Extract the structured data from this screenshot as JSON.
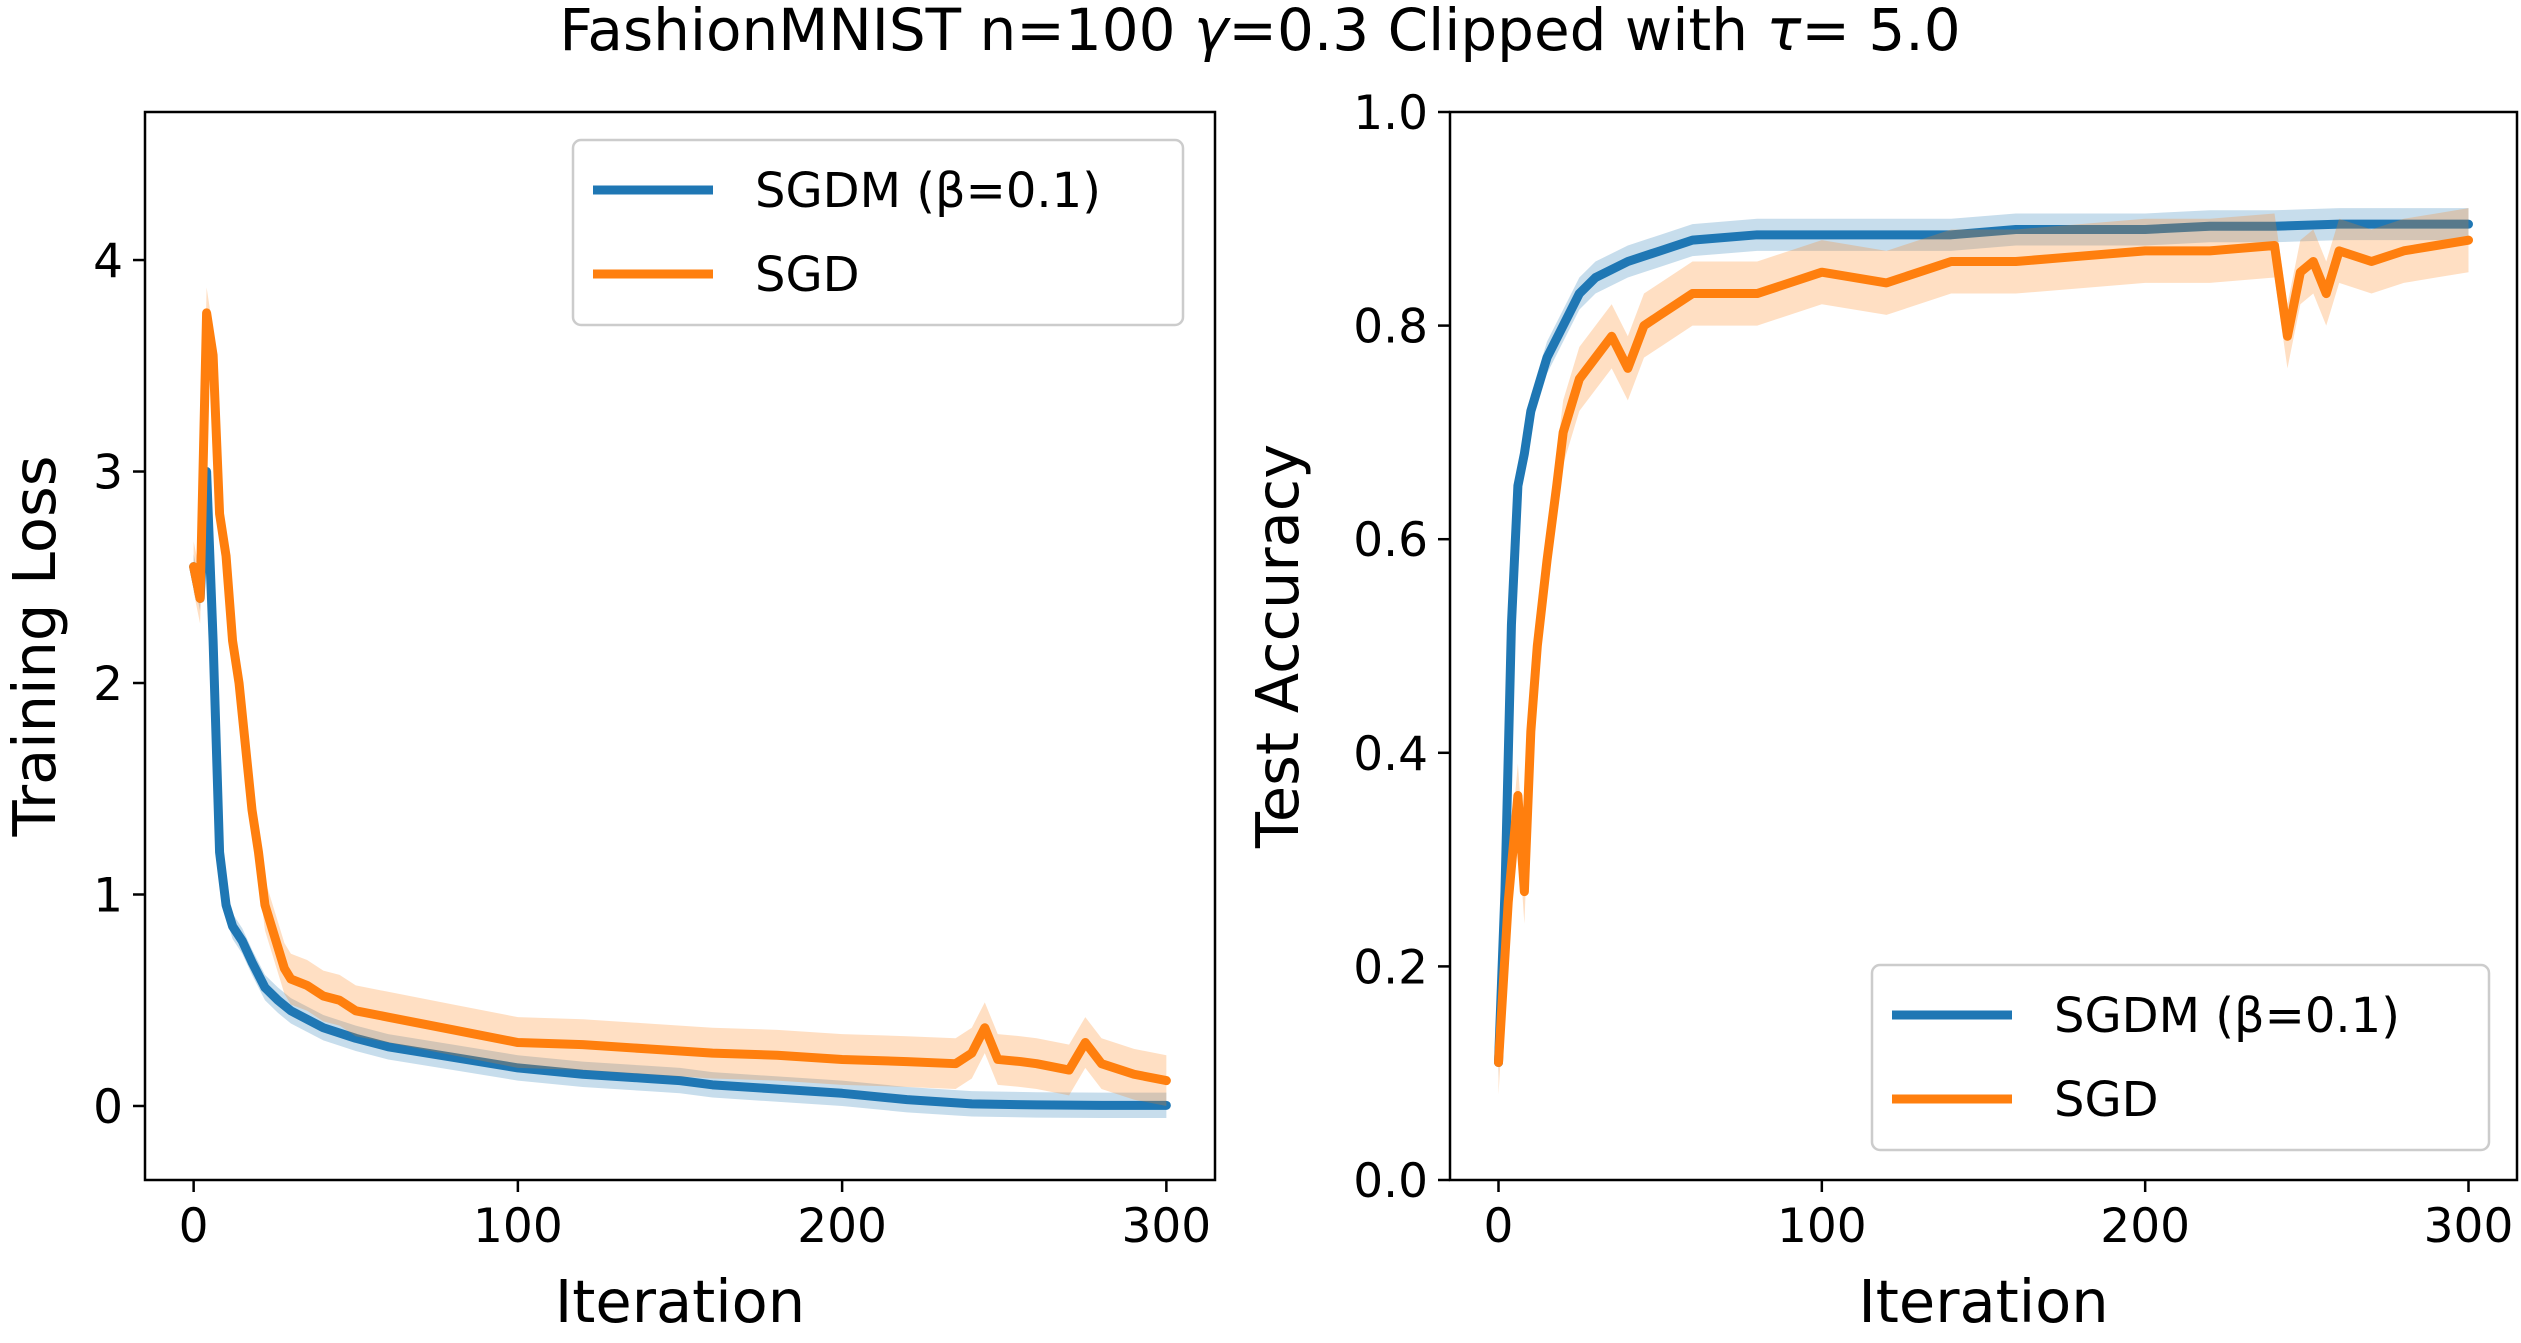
{
  "figure": {
    "title_prefix": "FashionMNIST n=100 ",
    "title_gamma_symbol": "γ",
    "title_middle": "=0.3 Clipped with ",
    "title_tau_symbol": "τ",
    "title_suffix": "= 5.0"
  },
  "colors": {
    "sgdm": "#1f77b4",
    "sgd": "#ff7f0e"
  },
  "chart_data": [
    {
      "type": "line",
      "xlabel": "Iteration",
      "ylabel": "Training Loss",
      "xlim": [
        -15,
        315
      ],
      "ylim": [
        -0.35,
        4.7
      ],
      "xticks": [
        "0",
        "100",
        "200",
        "300"
      ],
      "yticks": [
        "0",
        "1",
        "2",
        "3",
        "4"
      ],
      "legend_position": "upper right",
      "legend": [
        "SGDM (β=0.1)",
        "SGD"
      ],
      "grid": false,
      "series": [
        {
          "name": "SGDM (β=0.1)",
          "key": "sgdm",
          "x": [
            0,
            2,
            4,
            6,
            8,
            10,
            12,
            15,
            18,
            22,
            26,
            30,
            40,
            50,
            60,
            80,
            100,
            120,
            140,
            150,
            160,
            180,
            200,
            220,
            240,
            260,
            280,
            300
          ],
          "y": [
            2.55,
            2.4,
            3.0,
            2.2,
            1.2,
            0.95,
            0.85,
            0.78,
            0.68,
            0.56,
            0.5,
            0.45,
            0.37,
            0.32,
            0.28,
            0.23,
            0.18,
            0.15,
            0.13,
            0.12,
            0.1,
            0.08,
            0.06,
            0.03,
            0.01,
            0.005,
            0.003,
            0.003
          ],
          "band": 0.06
        },
        {
          "name": "SGD",
          "key": "sgd",
          "x": [
            0,
            2,
            4,
            6,
            8,
            10,
            12,
            14,
            16,
            18,
            20,
            22,
            25,
            28,
            30,
            35,
            40,
            45,
            50,
            60,
            80,
            100,
            120,
            140,
            160,
            180,
            200,
            220,
            235,
            240,
            244,
            248,
            255,
            260,
            270,
            275,
            280,
            290,
            300
          ],
          "y": [
            2.55,
            2.4,
            3.75,
            3.55,
            2.8,
            2.6,
            2.2,
            2.0,
            1.7,
            1.4,
            1.2,
            0.95,
            0.8,
            0.65,
            0.6,
            0.57,
            0.52,
            0.5,
            0.45,
            0.42,
            0.36,
            0.3,
            0.29,
            0.27,
            0.25,
            0.24,
            0.22,
            0.21,
            0.2,
            0.25,
            0.37,
            0.22,
            0.21,
            0.2,
            0.17,
            0.3,
            0.2,
            0.15,
            0.12
          ],
          "band": 0.12
        }
      ]
    },
    {
      "type": "line",
      "xlabel": "Iteration",
      "ylabel": "Test Accuracy",
      "xlim": [
        -15,
        315
      ],
      "ylim": [
        0.0,
        1.0
      ],
      "xticks": [
        "0",
        "100",
        "200",
        "300"
      ],
      "yticks": [
        "0.0",
        "0.2",
        "0.4",
        "0.6",
        "0.8",
        "1.0"
      ],
      "legend_position": "lower right",
      "legend": [
        "SGDM (β=0.1)",
        "SGD"
      ],
      "grid": false,
      "series": [
        {
          "name": "SGDM (β=0.1)",
          "key": "sgdm",
          "x": [
            0,
            2,
            4,
            6,
            8,
            10,
            12,
            15,
            20,
            25,
            30,
            40,
            50,
            60,
            80,
            100,
            120,
            140,
            160,
            180,
            200,
            220,
            240,
            260,
            280,
            300
          ],
          "y": [
            0.11,
            0.27,
            0.52,
            0.65,
            0.68,
            0.72,
            0.74,
            0.77,
            0.8,
            0.83,
            0.845,
            0.86,
            0.87,
            0.88,
            0.885,
            0.885,
            0.885,
            0.885,
            0.89,
            0.89,
            0.89,
            0.893,
            0.893,
            0.895,
            0.895,
            0.895
          ],
          "band": 0.015
        },
        {
          "name": "SGD",
          "key": "sgd",
          "x": [
            0,
            3,
            6,
            8,
            10,
            12,
            15,
            18,
            20,
            25,
            30,
            35,
            40,
            45,
            50,
            60,
            80,
            100,
            120,
            140,
            160,
            180,
            200,
            220,
            240,
            244,
            248,
            252,
            256,
            260,
            270,
            280,
            290,
            300
          ],
          "y": [
            0.11,
            0.26,
            0.36,
            0.27,
            0.42,
            0.5,
            0.58,
            0.65,
            0.7,
            0.75,
            0.77,
            0.79,
            0.76,
            0.8,
            0.81,
            0.83,
            0.83,
            0.85,
            0.84,
            0.86,
            0.86,
            0.865,
            0.87,
            0.87,
            0.875,
            0.79,
            0.85,
            0.86,
            0.83,
            0.87,
            0.86,
            0.87,
            0.875,
            0.88
          ],
          "band": 0.03
        }
      ]
    }
  ]
}
